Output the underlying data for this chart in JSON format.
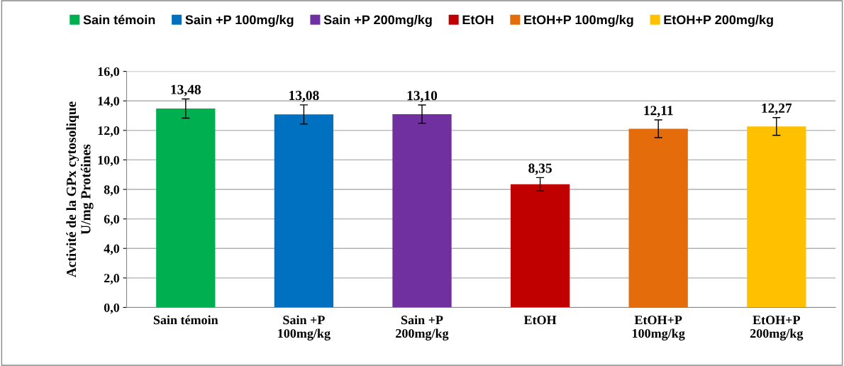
{
  "chart_data": {
    "type": "bar",
    "ylabel": "Activité de la GPx cytosolique\nU/mg Protéines",
    "categories": [
      "Sain témoin",
      "Sain +P\n100mg/kg",
      "Sain +P\n200mg/kg",
      "EtOH",
      "EtOH+P\n100mg/kg",
      "EtOH+P\n200mg/kg"
    ],
    "series": [
      {
        "name": "Sain témoin",
        "color": "#00b050",
        "values": [
          13.48,
          null,
          null,
          null,
          null,
          null
        ],
        "errors": [
          0.65,
          null,
          null,
          null,
          null,
          null
        ],
        "value_labels": [
          "13,48",
          null,
          null,
          null,
          null,
          null
        ]
      },
      {
        "name": "Sain +P 100mg/kg",
        "color": "#0070c0",
        "values": [
          null,
          13.08,
          null,
          null,
          null,
          null
        ],
        "errors": [
          null,
          0.65,
          null,
          null,
          null,
          null
        ],
        "value_labels": [
          null,
          "13,08",
          null,
          null,
          null,
          null
        ]
      },
      {
        "name": "Sain +P 200mg/kg",
        "color": "#7030a0",
        "values": [
          null,
          null,
          13.1,
          null,
          null,
          null
        ],
        "errors": [
          null,
          null,
          0.62,
          null,
          null,
          null
        ],
        "value_labels": [
          null,
          null,
          "13,10",
          null,
          null,
          null
        ]
      },
      {
        "name": "EtOH",
        "color": "#c00000",
        "values": [
          null,
          null,
          null,
          8.35,
          null,
          null
        ],
        "errors": [
          null,
          null,
          null,
          0.45,
          null,
          null
        ],
        "value_labels": [
          null,
          null,
          null,
          "8,35",
          null,
          null
        ]
      },
      {
        "name": "EtOH+P 100mg/kg",
        "color": "#e46c0a",
        "values": [
          null,
          null,
          null,
          null,
          12.11,
          null
        ],
        "errors": [
          null,
          null,
          null,
          null,
          0.6,
          null
        ],
        "value_labels": [
          null,
          null,
          null,
          null,
          "12,11",
          null
        ]
      },
      {
        "name": "EtOH+P 200mg/kg",
        "color": "#ffc000",
        "values": [
          null,
          null,
          null,
          null,
          null,
          12.27
        ],
        "errors": [
          null,
          null,
          null,
          null,
          null,
          0.6
        ],
        "value_labels": [
          null,
          null,
          null,
          null,
          null,
          "12,27"
        ]
      }
    ],
    "ylim": [
      0,
      16
    ],
    "yticks": [
      {
        "value": 0,
        "label": "0,0"
      },
      {
        "value": 2,
        "label": "2,0"
      },
      {
        "value": 4,
        "label": "4,0"
      },
      {
        "value": 6,
        "label": "6,0"
      },
      {
        "value": 8,
        "label": "8,0"
      },
      {
        "value": 10,
        "label": "10,0"
      },
      {
        "value": 12,
        "label": "12,0"
      },
      {
        "value": 14,
        "label": "14,0"
      },
      {
        "value": 16,
        "label": "16,0"
      }
    ],
    "grid": "y",
    "legend": "top"
  }
}
